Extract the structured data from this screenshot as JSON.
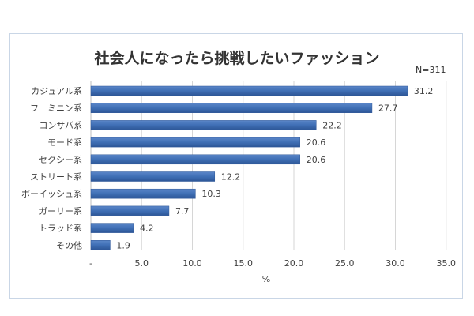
{
  "chart_data": {
    "type": "bar",
    "orientation": "horizontal",
    "title": "社会人になったら挑戦したいファッション",
    "note": "N=311",
    "xlabel": "%",
    "ylabel": "",
    "categories": [
      "カジュアル系",
      "フェミニン系",
      "コンサバ系",
      "モード系",
      "セクシー系",
      "ストリート系",
      "ボーイッシュ系",
      "ガーリー系",
      "トラッド系",
      "その他"
    ],
    "values": [
      31.2,
      27.7,
      22.2,
      20.6,
      20.6,
      12.2,
      10.3,
      7.7,
      4.2,
      1.9
    ],
    "value_labels": [
      "31.2",
      "27.7",
      "22.2",
      "20.6",
      "20.6",
      "12.2",
      "10.3",
      "7.7",
      "4.2",
      "1.9"
    ],
    "xlim": [
      0,
      35
    ],
    "xticks": [
      0,
      5,
      10,
      15,
      20,
      25,
      30,
      35
    ],
    "xtick_labels": [
      "-",
      "5.0",
      "10.0",
      "15.0",
      "20.0",
      "25.0",
      "30.0",
      "35.0"
    ],
    "grid": "vertical",
    "legend": "none",
    "bar_color": "#3f6fb5"
  }
}
